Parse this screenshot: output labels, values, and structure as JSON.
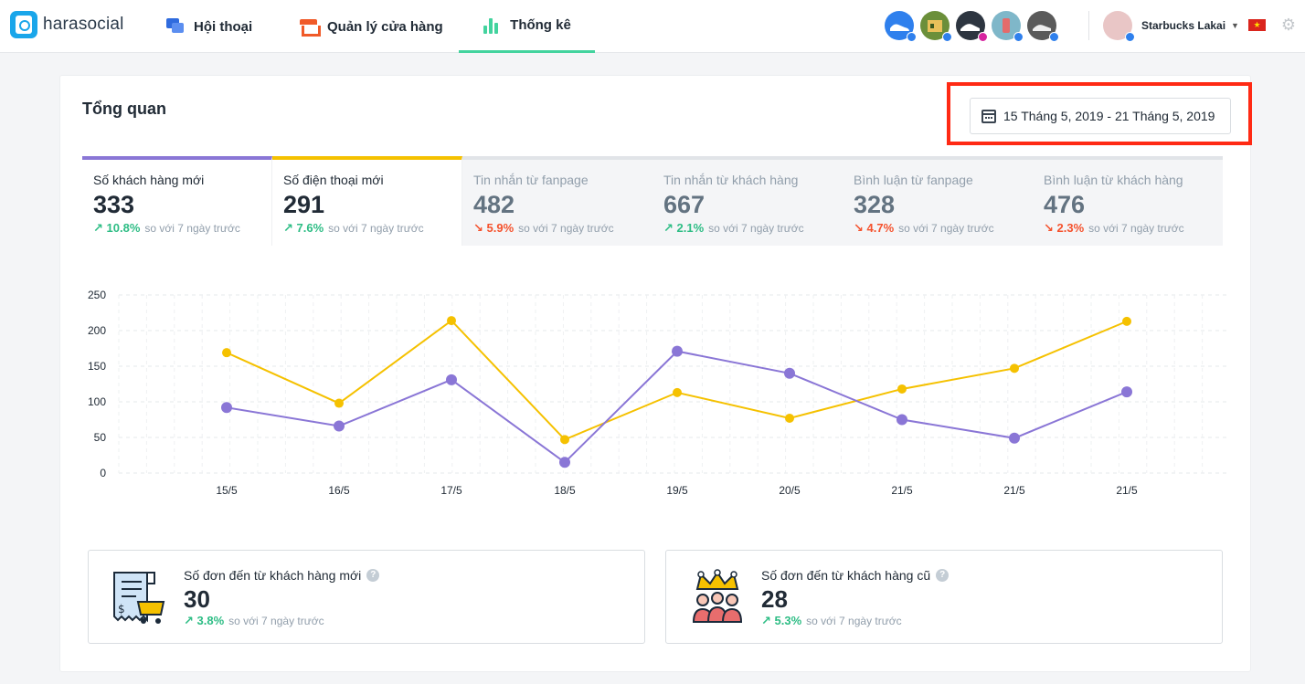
{
  "app": {
    "logo_text": "harasocial"
  },
  "nav": {
    "chat": "Hội thoại",
    "store": "Quản lý cửa hàng",
    "stats": "Thống kê"
  },
  "account": {
    "name": "Starbucks Lakai",
    "flag_glyph": "★"
  },
  "overview": {
    "title": "Tổng quan",
    "date_range": "15 Tháng 5, 2019 - 21 Tháng 5, 2019"
  },
  "metrics": [
    {
      "label": "Số khách hàng mới",
      "value": "333",
      "arrow": "↗",
      "pct": "10.8%",
      "trend": "up",
      "note": "so với 7 ngày trước",
      "color": "#8a76d6"
    },
    {
      "label": "Số điện thoại mới",
      "value": "291",
      "arrow": "↗",
      "pct": "7.6%",
      "trend": "up",
      "note": "so với 7 ngày trước",
      "color": "#f5c100"
    },
    {
      "label": "Tin nhắn từ fanpage",
      "value": "482",
      "arrow": "↘",
      "pct": "5.9%",
      "trend": "down",
      "note": "so với 7 ngày trước"
    },
    {
      "label": "Tin nhắn từ khách hàng",
      "value": "667",
      "arrow": "↗",
      "pct": "2.1%",
      "trend": "up",
      "note": "so với 7 ngày trước"
    },
    {
      "label": "Bình luận từ fanpage",
      "value": "328",
      "arrow": "↘",
      "pct": "4.7%",
      "trend": "down",
      "note": "so với 7 ngày trước"
    },
    {
      "label": "Bình luận từ khách hàng",
      "value": "476",
      "arrow": "↘",
      "pct": "2.3%",
      "trend": "down",
      "note": "so với 7 ngày trước"
    }
  ],
  "chart_data": {
    "type": "line",
    "categories": [
      "15/5",
      "16/5",
      "17/5",
      "18/5",
      "19/5",
      "20/5",
      "21/5",
      "21/5",
      "21/5"
    ],
    "series": [
      {
        "name": "Số khách hàng mới",
        "color": "#8a76d6",
        "values": [
          92,
          66,
          131,
          15,
          171,
          140,
          75,
          49,
          114
        ]
      },
      {
        "name": "Số điện thoại mới",
        "color": "#f5c100",
        "values": [
          169,
          98,
          214,
          47,
          113,
          77,
          118,
          147,
          213
        ]
      }
    ],
    "yticks": [
      0,
      50,
      100,
      150,
      200,
      250
    ],
    "ylim": [
      0,
      250
    ],
    "grid": true
  },
  "orders": {
    "new": {
      "label": "Số đơn đến từ khách hàng mới",
      "value": "30",
      "arrow": "↗",
      "pct": "3.8%",
      "note": "so với 7 ngày trước"
    },
    "old": {
      "label": "Số đơn đến từ khách hàng cũ",
      "value": "28",
      "arrow": "↗",
      "pct": "5.3%",
      "note": "so với 7 ngày trước"
    },
    "help_glyph": "?"
  },
  "colors": {
    "accent_green": "#43d39e",
    "highlight": "#ff2a14",
    "up": "#2ebd85",
    "down": "#f5522d"
  }
}
